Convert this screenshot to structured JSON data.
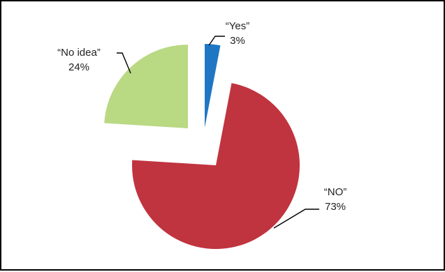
{
  "chart_data": {
    "type": "pie",
    "title": "",
    "slices": [
      {
        "label": "“Yes”",
        "value": 3,
        "value_label": "3%",
        "color": "#1F77C4",
        "exploded": true
      },
      {
        "label": "“NO”",
        "value": 73,
        "value_label": "73%",
        "color": "#C0343F",
        "exploded": false
      },
      {
        "label": "“No idea”",
        "value": 24,
        "value_label": "24%",
        "color": "#B9D983",
        "exploded": true
      }
    ],
    "start_angle_deg": 0,
    "direction": "clockwise",
    "legend": "none",
    "labels": "outside with leader lines"
  }
}
